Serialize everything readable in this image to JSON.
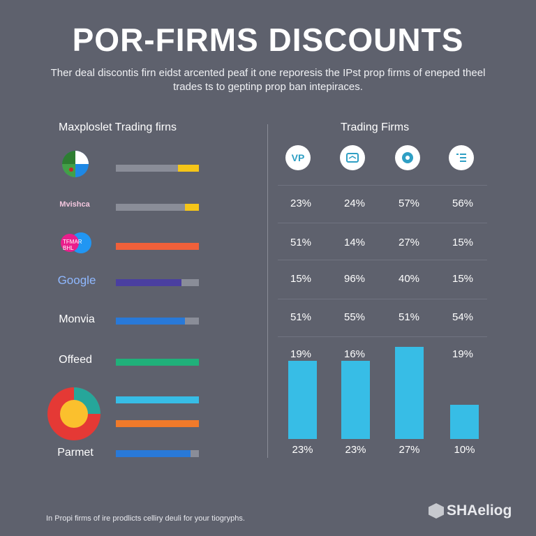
{
  "header": {
    "title": "POR-FIRMS DISCOUNTS",
    "subtitle": "Ther deal discontis firn eidst arcented peaf it one reporesis the IPst prop firms of eneped theel trades ts to geptinp prop ban intepiraces."
  },
  "left_panel": {
    "heading": "Maxploslet Trading firns",
    "logos": [
      {
        "name": "",
        "icon": "pie-logo-icon",
        "colors": [
          "#1e88e5",
          "#ffffff",
          "#2e7d32",
          "#c62828"
        ]
      },
      {
        "name": "Mvishca",
        "icon": "wordmark-logo-icon",
        "colors": [
          "#e91e63"
        ]
      },
      {
        "name": "TFMAR BHL",
        "icon": "bubble-logo-icon",
        "colors": [
          "#e91e8c",
          "#2196f3"
        ]
      },
      {
        "name": "Google",
        "icon": "google-wordmark"
      },
      {
        "name": "Monvia",
        "icon": "text-wordmark"
      },
      {
        "name": "Offeed",
        "icon": "text-wordmark"
      },
      {
        "name": "",
        "icon": "donut-logo-icon",
        "colors": [
          "#e53935",
          "#fbc02d",
          "#26a69a"
        ]
      },
      {
        "name": "Parmet",
        "icon": "text-wordmark"
      }
    ],
    "bars": [
      {
        "fill": 0.75,
        "color": "#8a8d98",
        "accent": "#f5c518",
        "accent_frac": 0.25
      },
      {
        "fill": 0.83,
        "color": "#8a8d98",
        "accent": "#f5c518",
        "accent_frac": 0.17
      },
      {
        "fill": 1.0,
        "color": "#f0603a"
      },
      {
        "fill": 0.79,
        "color": "#4a3fa0"
      },
      {
        "fill": 0.83,
        "color": "#2979d8"
      },
      {
        "fill": 1.0,
        "color": "#20b07a"
      },
      {
        "fill": 1.0,
        "color": "#37bde6"
      },
      {
        "fill": 1.0,
        "color": "#f07a2a"
      },
      {
        "fill": 0.9,
        "color": "#2979d8"
      }
    ]
  },
  "right_panel": {
    "heading": "Trading Firms",
    "icons": [
      {
        "label": "VP",
        "name": "vp-icon"
      },
      {
        "label": "",
        "name": "card-icon"
      },
      {
        "label": "",
        "name": "gear-icon"
      },
      {
        "label": "",
        "name": "list-icon"
      }
    ]
  },
  "chart_data": {
    "type": "table",
    "rows": [
      [
        "23%",
        "24%",
        "57%",
        "56%"
      ],
      [
        "51%",
        "14%",
        "27%",
        "15%"
      ],
      [
        "15%",
        "96%",
        "40%",
        "15%"
      ],
      [
        "51%",
        "55%",
        "51%",
        "54%"
      ],
      [
        "19%",
        "16%",
        "",
        "19%"
      ]
    ],
    "bar_chart": {
      "type": "bar",
      "values": [
        23,
        23,
        27,
        10
      ],
      "labels": [
        "23%",
        "23%",
        "27%",
        "10%"
      ],
      "color": "#37bde6"
    }
  },
  "footer": {
    "note": "In Propi firms of ire prodlicts celliry deuli for your tiogryphs.",
    "brand": "SHAeliog"
  }
}
